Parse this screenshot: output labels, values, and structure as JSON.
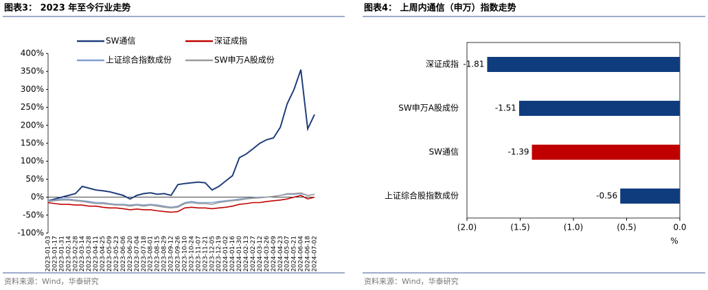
{
  "chart_data": [
    {
      "type": "line",
      "title": "图表3： 2023 年至今行业走势",
      "source": "资料来源：Wind，华泰研究",
      "categories": [
        "2023-01-03",
        "2023-01-17",
        "2023-01-31",
        "2023-02-14",
        "2023-02-28",
        "2023-03-14",
        "2023-03-28",
        "2023-04-11",
        "2023-04-25",
        "2023-05-09",
        "2023-05-23",
        "2023-06-06",
        "2023-06-20",
        "2023-07-04",
        "2023-07-18",
        "2023-08-01",
        "2023-08-15",
        "2023-08-29",
        "2023-09-12",
        "2023-09-26",
        "2023-10-10",
        "2023-10-24",
        "2023-11-07",
        "2023-11-21",
        "2023-12-05",
        "2023-12-19",
        "2024-01-02",
        "2024-01-16",
        "2024-01-30",
        "2024-02-13",
        "2024-02-27",
        "2024-03-12",
        "2024-03-26",
        "2024-04-09",
        "2024-04-23",
        "2024-05-07",
        "2024-05-21",
        "2024-06-04",
        "2024-06-18",
        "2024-07-02"
      ],
      "series": [
        {
          "name": "SW通信",
          "color": "#1f3d7a",
          "values": [
            -10,
            -5,
            0,
            5,
            10,
            30,
            25,
            20,
            18,
            15,
            10,
            5,
            -5,
            5,
            10,
            12,
            8,
            10,
            5,
            35,
            38,
            40,
            42,
            40,
            20,
            30,
            45,
            60,
            110,
            120,
            135,
            150,
            160,
            165,
            195,
            260,
            300,
            355,
            190,
            230
          ]
        },
        {
          "name": "深证成指",
          "color": "#c00000",
          "values": [
            -15,
            -18,
            -20,
            -20,
            -22,
            -22,
            -25,
            -25,
            -28,
            -30,
            -30,
            -32,
            -35,
            -33,
            -35,
            -35,
            -38,
            -40,
            -42,
            -40,
            -30,
            -28,
            -30,
            -30,
            -32,
            -30,
            -28,
            -25,
            -20,
            -18,
            -15,
            -15,
            -12,
            -10,
            -8,
            -5,
            0,
            5,
            -5,
            0
          ]
        },
        {
          "name": "上证综合指数成份",
          "color": "#7f9fcf",
          "values": [
            -10,
            -8,
            -5,
            -5,
            -8,
            -10,
            -12,
            -15,
            -15,
            -18,
            -20,
            -20,
            -22,
            -20,
            -22,
            -20,
            -22,
            -25,
            -28,
            -25,
            -15,
            -12,
            -15,
            -15,
            -15,
            -12,
            -10,
            -8,
            -5,
            -3,
            -2,
            0,
            0,
            2,
            5,
            8,
            8,
            10,
            5,
            8
          ]
        },
        {
          "name": "SW申万A股成份",
          "color": "#9a9a9a",
          "values": [
            -12,
            -10,
            -8,
            -8,
            -10,
            -12,
            -15,
            -18,
            -18,
            -20,
            -22,
            -22,
            -25,
            -22,
            -25,
            -22,
            -25,
            -28,
            -30,
            -28,
            -18,
            -15,
            -18,
            -18,
            -20,
            -15,
            -12,
            -10,
            -8,
            -5,
            -3,
            -2,
            0,
            2,
            5,
            10,
            10,
            12,
            5,
            8
          ]
        }
      ],
      "ylim": [
        -100,
        400
      ],
      "yticks": [
        {
          "value": -100,
          "label": "-100%"
        },
        {
          "value": -50,
          "label": "-50%"
        },
        {
          "value": 0,
          "label": "0%"
        },
        {
          "value": 50,
          "label": "50%"
        },
        {
          "value": 100,
          "label": "100%"
        },
        {
          "value": 150,
          "label": "150%"
        },
        {
          "value": 200,
          "label": "200%"
        },
        {
          "value": 250,
          "label": "250%"
        },
        {
          "value": 300,
          "label": "300%"
        },
        {
          "value": 350,
          "label": "350%"
        },
        {
          "value": 400,
          "label": "400%"
        }
      ]
    },
    {
      "type": "barh",
      "title": "图表4： 上周内通信（申万）指数走势",
      "source": "资料来源：Wind，华泰研究",
      "categories": [
        "深证成指",
        "SW申万A股成份",
        "SW通信",
        "上证综合股指数成份"
      ],
      "values": [
        -1.81,
        -1.51,
        -1.39,
        -0.56
      ],
      "colors": [
        "#0f3c7d",
        "#0f3c7d",
        "#c00000",
        "#0f3c7d"
      ],
      "xlabel": "%",
      "xlim": [
        -2.0,
        0.0
      ],
      "xticks": [
        {
          "value": -2.0,
          "label": "(2.0)"
        },
        {
          "value": -1.5,
          "label": "(1.5)"
        },
        {
          "value": -1.0,
          "label": "(1.0)"
        },
        {
          "value": -0.5,
          "label": "(0.5)"
        },
        {
          "value": 0.0,
          "label": "0.0"
        }
      ]
    }
  ]
}
